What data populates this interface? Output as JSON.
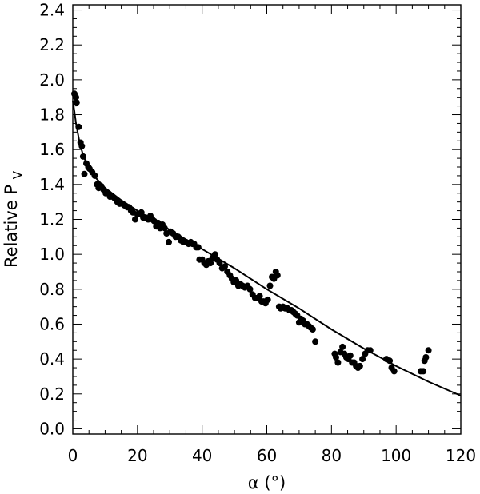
{
  "chart_data": {
    "type": "scatter",
    "xlabel": "α (°)",
    "ylabel": {
      "text": "Relative P",
      "subscript": "V"
    },
    "xlim": [
      0,
      120
    ],
    "ylim": [
      -0.03,
      2.43
    ],
    "x_ticks": [
      "0",
      "20",
      "40",
      "60",
      "80",
      "100",
      "120"
    ],
    "y_ticks": [
      "0.0",
      "0.2",
      "0.4",
      "0.6",
      "0.8",
      "1.0",
      "1.2",
      "1.4",
      "1.6",
      "1.8",
      "2.0",
      "2.2",
      "2.4"
    ],
    "grid": false,
    "legend": "none",
    "series": [
      {
        "kind": "points",
        "x": [
          0.5,
          1,
          1.2,
          1.8,
          2.4,
          2.8,
          3.2,
          3.6,
          4.2,
          4.8,
          5.2,
          6,
          6.8,
          7.5,
          8,
          8.8,
          9.5,
          10.2,
          11,
          11.5,
          12.3,
          13,
          13.8,
          14.5,
          15.3,
          16,
          16.8,
          17.4,
          18,
          18.6,
          19.3,
          20,
          20.6,
          21.2,
          21.8,
          22.5,
          23.3,
          24,
          24.6,
          25.2,
          25.8,
          26.4,
          27,
          27.7,
          28.4,
          29,
          29.7,
          30.2,
          31,
          31.8,
          32.6,
          33.4,
          34.2,
          35,
          35.8,
          36.5,
          37,
          37.5,
          38.2,
          38.8,
          39.2,
          40,
          40.7,
          41.3,
          41.9,
          42.6,
          43.2,
          44,
          44.6,
          45.4,
          46.2,
          47,
          47.8,
          48.6,
          49.2,
          49.8,
          50.5,
          51.2,
          51.8,
          52.5,
          53.2,
          54,
          54.8,
          55.6,
          56.4,
          57.2,
          57.8,
          58.4,
          59,
          59.6,
          60.3,
          61,
          61.6,
          62.2,
          62.8,
          63.3,
          63.8,
          64.3,
          65,
          65.7,
          66.4,
          67,
          67.6,
          68.2,
          68.8,
          69.4,
          70,
          70.6,
          71.2,
          71.8,
          72.4,
          73,
          73.6,
          74.2,
          75,
          81,
          81.4,
          82,
          82.8,
          83.4,
          84,
          84.6,
          85.2,
          85.8,
          86.4,
          87,
          87.6,
          88.2,
          88.8,
          89.6,
          90.4,
          91.2,
          92,
          97,
          98,
          98.6,
          99.4,
          107.6,
          108.4,
          108.8,
          109.2,
          110
        ],
        "y": [
          1.92,
          1.9,
          1.87,
          1.73,
          1.64,
          1.62,
          1.56,
          1.46,
          1.52,
          1.5,
          1.49,
          1.47,
          1.45,
          1.4,
          1.38,
          1.39,
          1.37,
          1.35,
          1.35,
          1.33,
          1.33,
          1.32,
          1.3,
          1.29,
          1.29,
          1.28,
          1.27,
          1.27,
          1.25,
          1.24,
          1.2,
          1.23,
          1.23,
          1.24,
          1.21,
          1.21,
          1.2,
          1.22,
          1.2,
          1.19,
          1.16,
          1.18,
          1.15,
          1.17,
          1.15,
          1.12,
          1.07,
          1.13,
          1.12,
          1.1,
          1.1,
          1.08,
          1.07,
          1.07,
          1.06,
          1.07,
          1.06,
          1.06,
          1.04,
          1.04,
          0.97,
          0.97,
          0.95,
          0.94,
          0.96,
          0.95,
          0.98,
          1.0,
          0.97,
          0.95,
          0.92,
          0.93,
          0.9,
          0.88,
          0.86,
          0.84,
          0.85,
          0.82,
          0.83,
          0.82,
          0.81,
          0.82,
          0.8,
          0.77,
          0.75,
          0.75,
          0.76,
          0.73,
          0.73,
          0.72,
          0.74,
          0.82,
          0.87,
          0.86,
          0.9,
          0.88,
          0.7,
          0.69,
          0.7,
          0.69,
          0.69,
          0.68,
          0.68,
          0.67,
          0.66,
          0.65,
          0.61,
          0.63,
          0.62,
          0.6,
          0.6,
          0.59,
          0.58,
          0.57,
          0.5,
          0.43,
          0.41,
          0.38,
          0.44,
          0.47,
          0.43,
          0.41,
          0.4,
          0.42,
          0.38,
          0.38,
          0.36,
          0.35,
          0.36,
          0.4,
          0.43,
          0.45,
          0.45,
          0.4,
          0.39,
          0.35,
          0.33,
          0.33,
          0.33,
          0.39,
          0.41,
          0.45
        ]
      },
      {
        "kind": "fit-curve",
        "x": [
          0,
          0.5,
          1,
          2,
          3,
          4,
          5,
          7,
          10,
          15,
          20,
          30,
          40,
          50,
          60,
          70,
          80,
          90,
          100,
          110,
          120
        ],
        "y": [
          1.88,
          1.82,
          1.75,
          1.65,
          1.58,
          1.53,
          1.5,
          1.44,
          1.38,
          1.31,
          1.25,
          1.14,
          1.03,
          0.92,
          0.8,
          0.69,
          0.57,
          0.46,
          0.36,
          0.27,
          0.19
        ]
      }
    ]
  }
}
